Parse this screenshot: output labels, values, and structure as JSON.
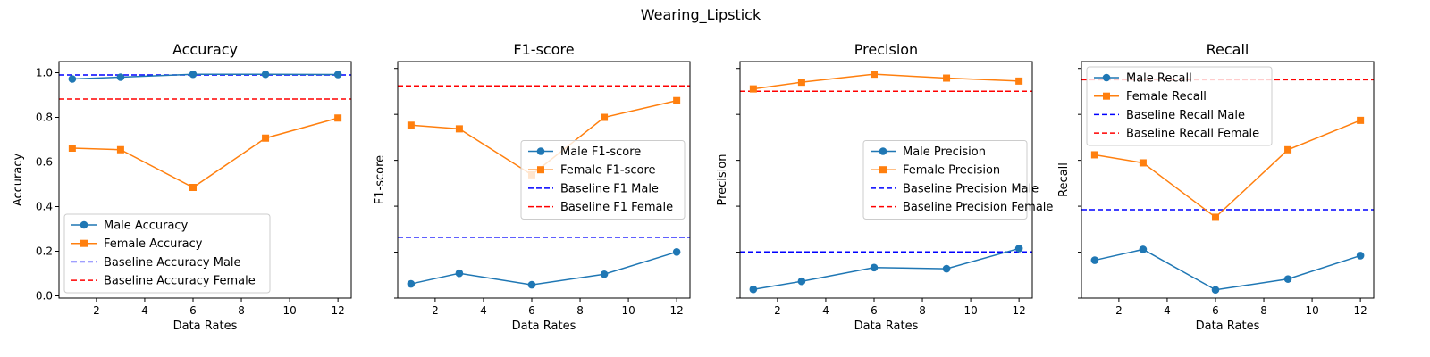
{
  "figure": {
    "title": "Wearing_Lipstick"
  },
  "chart_data": [
    {
      "type": "line",
      "title": "Accuracy",
      "xlabel": "Data Rates",
      "ylabel": "Accuracy",
      "x": [
        1,
        3,
        6,
        9,
        12
      ],
      "xlim": [
        0.45,
        12.55
      ],
      "ylim": [
        -0.01,
        1.05
      ],
      "xticks": [
        2,
        4,
        6,
        8,
        10,
        12
      ],
      "yticks": [
        0.0,
        0.2,
        0.4,
        0.6,
        0.8,
        1.0
      ],
      "ytick_labels": [
        "0.0",
        "0.2",
        "0.4",
        "0.6",
        "0.8",
        "1.0"
      ],
      "series": [
        {
          "name": "Male Accuracy",
          "values": [
            0.972,
            0.98,
            0.993,
            0.993,
            0.992
          ],
          "color": "#1f77b4",
          "marker": "circle"
        },
        {
          "name": "Female Accuracy",
          "values": [
            0.662,
            0.655,
            0.486,
            0.707,
            0.797
          ],
          "color": "#ff7f0e",
          "marker": "square"
        }
      ],
      "baselines": [
        {
          "name": "Baseline Accuracy Male",
          "value": 0.99,
          "color": "#0000ff"
        },
        {
          "name": "Baseline Accuracy Female",
          "value": 0.882,
          "color": "#ff0000"
        }
      ],
      "legend": "lower-left",
      "grid": false
    },
    {
      "type": "line",
      "title": "F1-score",
      "xlabel": "Data Rates",
      "ylabel": "F1-score",
      "x": [
        1,
        3,
        6,
        9,
        12
      ],
      "xlim": [
        0.45,
        12.55
      ],
      "ylim": [
        0.0,
        1.03
      ],
      "xticks": [
        2,
        4,
        6,
        8,
        10,
        12
      ],
      "yticks": [
        0.0,
        0.2,
        0.4,
        0.6,
        0.8,
        1.0
      ],
      "ytick_labels": [
        "",
        "",
        "",
        "",
        "",
        ""
      ],
      "series": [
        {
          "name": "Male F1-score",
          "values": [
            0.062,
            0.108,
            0.058,
            0.104,
            0.201
          ],
          "color": "#1f77b4",
          "marker": "circle"
        },
        {
          "name": "Female F1-score",
          "values": [
            0.753,
            0.737,
            0.537,
            0.787,
            0.86
          ],
          "color": "#ff7f0e",
          "marker": "square"
        }
      ],
      "baselines": [
        {
          "name": "Baseline F1 Male",
          "value": 0.265,
          "color": "#0000ff"
        },
        {
          "name": "Baseline F1 Female",
          "value": 0.924,
          "color": "#ff0000"
        }
      ],
      "legend": "center-right",
      "grid": false
    },
    {
      "type": "line",
      "title": "Precision",
      "xlabel": "Data Rates",
      "ylabel": "Precision",
      "x": [
        1,
        3,
        6,
        9,
        12
      ],
      "xlim": [
        0.45,
        12.55
      ],
      "ylim": [
        0.0,
        1.03
      ],
      "xticks": [
        2,
        4,
        6,
        8,
        10,
        12
      ],
      "yticks": [
        0.0,
        0.2,
        0.4,
        0.6,
        0.8,
        1.0
      ],
      "ytick_labels": [
        "",
        "",
        "",
        "",
        "",
        ""
      ],
      "series": [
        {
          "name": "Male Precision",
          "values": [
            0.038,
            0.073,
            0.133,
            0.128,
            0.216
          ],
          "color": "#1f77b4",
          "marker": "circle"
        },
        {
          "name": "Female Precision",
          "values": [
            0.911,
            0.94,
            0.975,
            0.958,
            0.945
          ],
          "color": "#ff7f0e",
          "marker": "square"
        }
      ],
      "baselines": [
        {
          "name": "Baseline Precision Male",
          "value": 0.201,
          "color": "#0000ff"
        },
        {
          "name": "Baseline Precision Female",
          "value": 0.901,
          "color": "#ff0000"
        }
      ],
      "legend": "center-right",
      "grid": false
    },
    {
      "type": "line",
      "title": "Recall",
      "xlabel": "Data Rates",
      "ylabel": "Recall",
      "x": [
        1,
        3,
        6,
        9,
        12
      ],
      "xlim": [
        0.45,
        12.55
      ],
      "ylim": [
        0.0,
        1.03
      ],
      "xticks": [
        2,
        4,
        6,
        8,
        10,
        12
      ],
      "yticks": [
        0.0,
        0.2,
        0.4,
        0.6,
        0.8,
        1.0
      ],
      "ytick_labels": [
        "",
        "",
        "",
        "",
        "",
        ""
      ],
      "series": [
        {
          "name": "Male Recall",
          "values": [
            0.165,
            0.212,
            0.036,
            0.083,
            0.185
          ],
          "color": "#1f77b4",
          "marker": "circle"
        },
        {
          "name": "Female Recall",
          "values": [
            0.624,
            0.589,
            0.352,
            0.646,
            0.774
          ],
          "color": "#ff7f0e",
          "marker": "square"
        }
      ],
      "baselines": [
        {
          "name": "Baseline Recall Male",
          "value": 0.385,
          "color": "#0000ff"
        },
        {
          "name": "Baseline Recall Female",
          "value": 0.951,
          "color": "#ff0000"
        }
      ],
      "legend": "upper-left",
      "grid": false
    }
  ]
}
